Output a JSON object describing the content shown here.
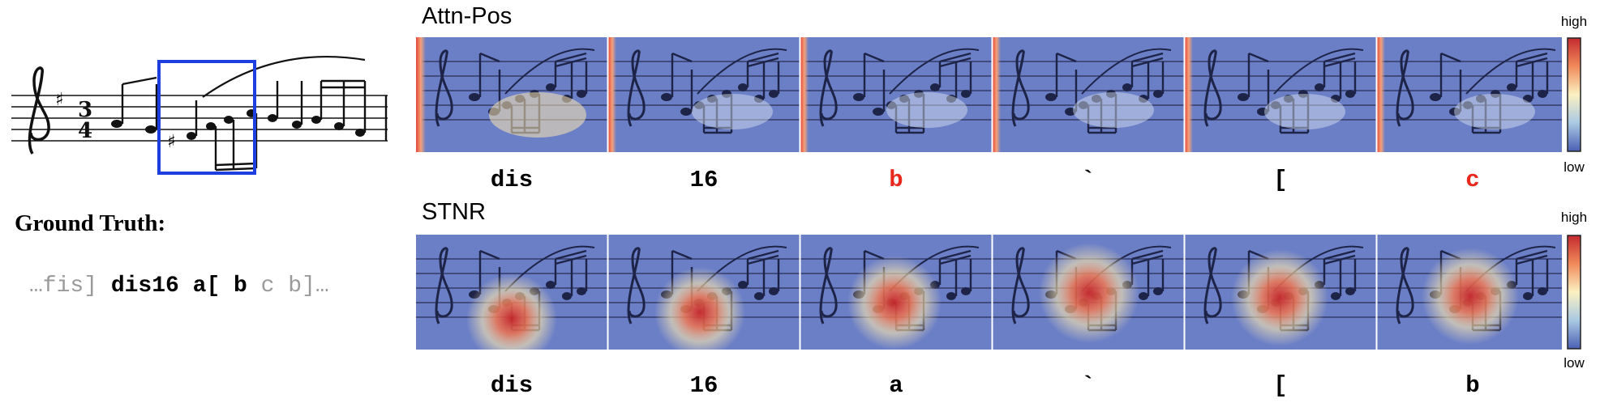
{
  "ground_truth": {
    "label": "Ground Truth:",
    "prefix": "…fis]",
    "highlighted": "dis16 a[ b",
    "suffix": "c b]…"
  },
  "panels": [
    {
      "title": "Attn-Pos",
      "colorbar": {
        "high": "high",
        "low": "low"
      },
      "frames": [
        {
          "token": "dis",
          "color": "#000000"
        },
        {
          "token": "16",
          "color": "#000000"
        },
        {
          "token": "b",
          "color": "#e8281c"
        },
        {
          "token": "`",
          "color": "#000000"
        },
        {
          "token": "[",
          "color": "#000000"
        },
        {
          "token": "c",
          "color": "#e8281c"
        }
      ]
    },
    {
      "title": "STNR",
      "colorbar": {
        "high": "high",
        "low": "low"
      },
      "frames": [
        {
          "token": "dis",
          "color": "#000000"
        },
        {
          "token": "16",
          "color": "#000000"
        },
        {
          "token": "a",
          "color": "#000000"
        },
        {
          "token": "`",
          "color": "#000000"
        },
        {
          "token": "[",
          "color": "#000000"
        },
        {
          "token": "b",
          "color": "#000000"
        }
      ]
    }
  ],
  "colors": {
    "highlight_box": "#1e3fe0",
    "heat_low": "#5a6fbf",
    "heat_high": "#c8262a",
    "error_token": "#e8281c"
  }
}
